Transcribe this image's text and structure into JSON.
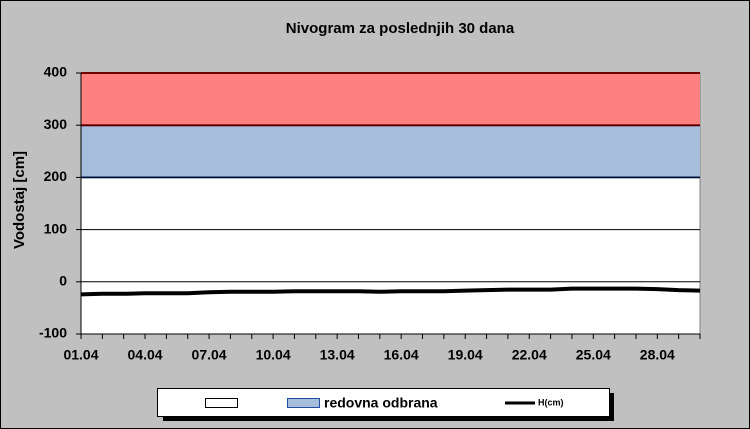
{
  "chart_data": {
    "type": "line",
    "title": "Nivogram za poslednjih 30 dana",
    "y_label": "Vodostaj [cm]",
    "categories": [
      "01.04",
      null,
      null,
      "04.04",
      null,
      null,
      "07.04",
      null,
      null,
      "10.04",
      null,
      null,
      "13.04",
      null,
      null,
      "16.04",
      null,
      null,
      "19.04",
      null,
      null,
      "22.04",
      null,
      null,
      "25.04",
      null,
      null,
      "28.04",
      null,
      null
    ],
    "ylim": [
      -100,
      400
    ],
    "yticks": [
      -100,
      0,
      100,
      200,
      300,
      400
    ],
    "grid": true,
    "bands": [
      {
        "name": "redovna odbrana",
        "color": "#a7bddc",
        "edge": "#1f4e9a",
        "range": [
          200,
          300
        ]
      },
      {
        "color": "#ff8080",
        "edge": "#e00000",
        "range": [
          300,
          400
        ]
      }
    ],
    "series": [
      {
        "name": "H(cm)",
        "color": "#000000",
        "values": [
          -24,
          -23,
          -23,
          -22,
          -22,
          -22,
          -20,
          -19,
          -19,
          -19,
          -18,
          -18,
          -18,
          -18,
          -19,
          -18,
          -18,
          -18,
          -17,
          -16,
          -15,
          -15,
          -15,
          -13,
          -13,
          -13,
          -13,
          -14,
          -16,
          -17
        ]
      }
    ]
  }
}
